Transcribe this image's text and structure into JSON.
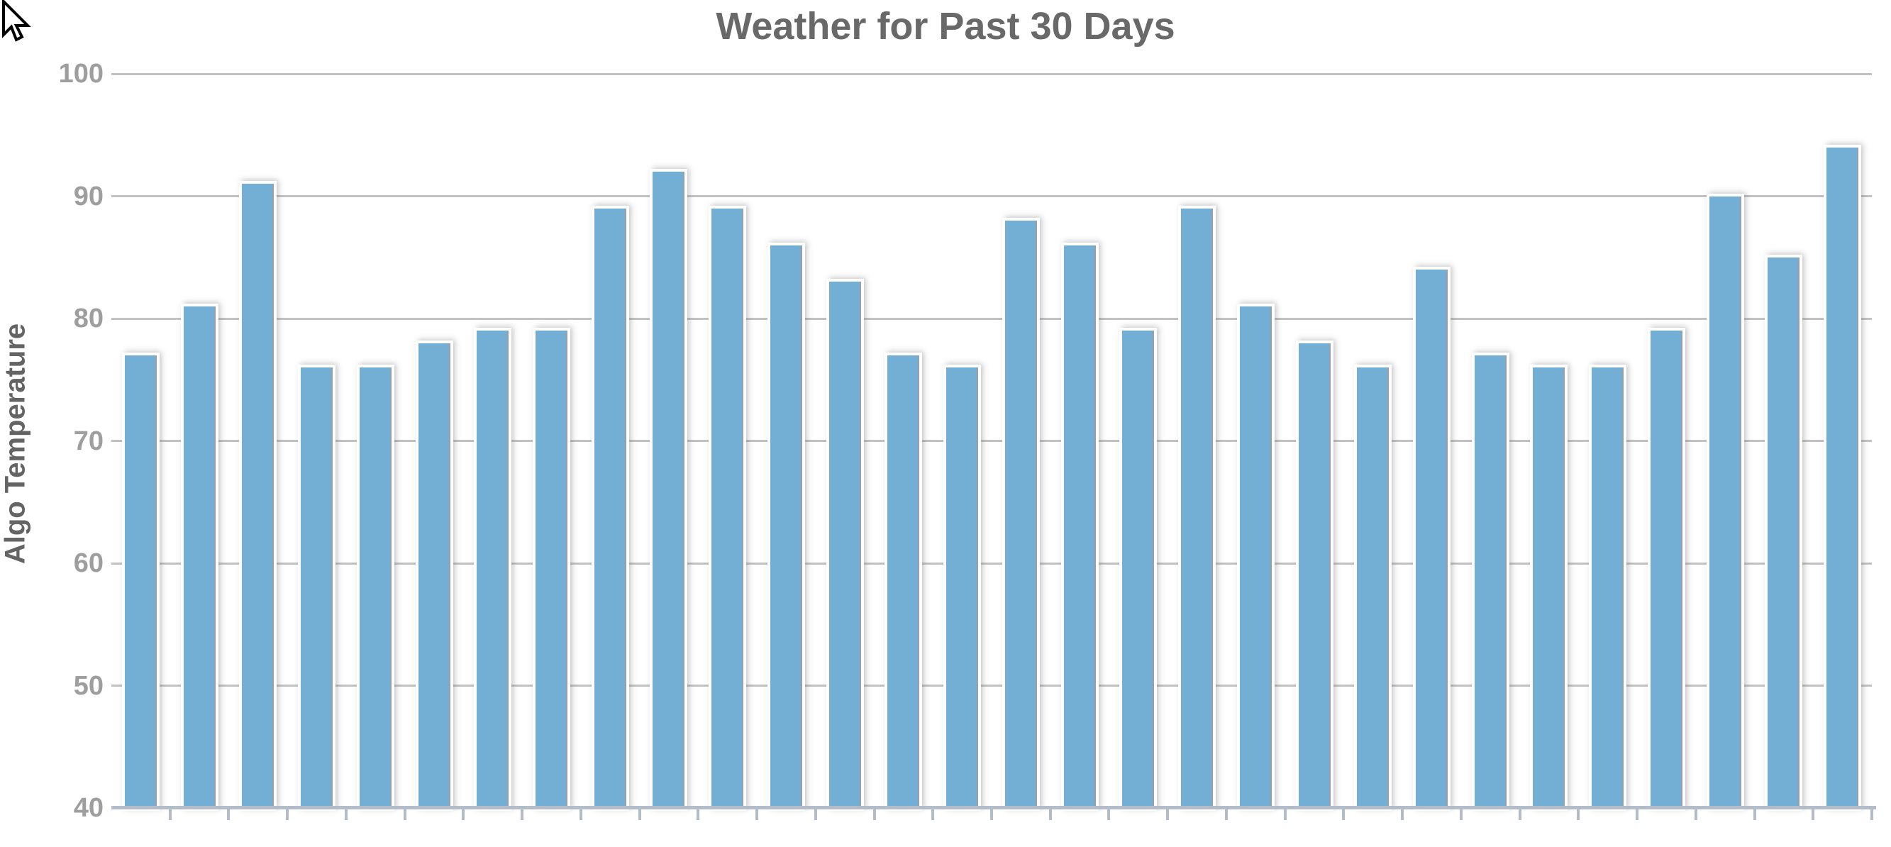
{
  "page": {
    "background_color": "#ffffff"
  },
  "cursor": {
    "type": "arrow-pointer"
  },
  "chart_data": {
    "type": "bar",
    "title": "Weather for Past 30 Days",
    "xlabel": "",
    "ylabel": "Algo Temperature",
    "values": [
      77,
      81,
      91,
      76,
      76,
      78,
      79,
      79,
      89,
      92,
      89,
      86,
      83,
      77,
      76,
      88,
      86,
      79,
      89,
      81,
      78,
      76,
      84,
      77,
      76,
      76,
      79,
      90,
      85,
      94
    ],
    "num_bars": 30,
    "ylim": [
      40,
      100
    ],
    "yticks": [
      100,
      90,
      80,
      70,
      60,
      50,
      40
    ],
    "x_tick_labels_visible": false,
    "grid": true,
    "legend_visible": false,
    "colors": {
      "bar_fill": "#73aed5",
      "bar_edge": "#98a0a8",
      "bar_outline": "#ffffff",
      "gridline": "#c2c2c2",
      "x_axis_line": "#b3bdc9",
      "title_text": "#696969",
      "y_tick_label_text": "#9e9e9e",
      "y_axis_title_text": "#646464"
    }
  }
}
